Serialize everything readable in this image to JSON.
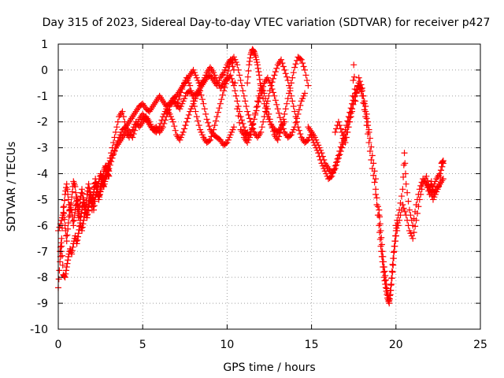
{
  "chart_data": {
    "type": "scatter",
    "title": "Day 315 of 2023, Sidereal Day-to-day VTEC variation (SDTVAR) for receiver p427",
    "xlabel": "GPS time / hours",
    "ylabel": "SDTVAR / TECUs",
    "xlim": [
      0,
      25
    ],
    "ylim": [
      -10,
      1
    ],
    "xticks": [
      "0",
      "5",
      "10",
      "15",
      "20",
      "25"
    ],
    "yticks": [
      "1",
      "0",
      "-1",
      "-2",
      "-3",
      "-4",
      "-5",
      "-6",
      "-7",
      "-8",
      "-9",
      "-10"
    ],
    "grid": true,
    "marker": "+",
    "series": [
      {
        "name": "SDTVAR p427",
        "color": "#ff0000",
        "segments": [
          {
            "name": "early-oscillating-band",
            "x": [
              0.0,
              0.2,
              0.3,
              0.4,
              0.5,
              0.6,
              0.7,
              0.8,
              0.9,
              1.0,
              1.1,
              1.2,
              1.3,
              1.4,
              1.5,
              1.6,
              1.7,
              1.8,
              1.9,
              2.0,
              2.1,
              2.2,
              2.3,
              2.4,
              2.5,
              2.6,
              2.7,
              2.8,
              2.9,
              3.0
            ],
            "y": [
              -6.2,
              -5.8,
              -5.5,
              -4.8,
              -4.4,
              -5.0,
              -5.6,
              -4.9,
              -4.3,
              -4.5,
              -5.2,
              -5.7,
              -5.0,
              -4.6,
              -5.1,
              -5.5,
              -4.8,
              -4.4,
              -4.9,
              -5.4,
              -4.7,
              -4.2,
              -4.6,
              -5.0,
              -4.5,
              -4.1,
              -4.3,
              -4.0,
              -3.8,
              -3.9
            ]
          },
          {
            "name": "early-low-band",
            "x": [
              0.0,
              0.1,
              0.2,
              0.3,
              0.4,
              0.5,
              0.6,
              0.7,
              0.8,
              0.9,
              1.0,
              1.1,
              1.2,
              1.3,
              1.4,
              1.5,
              1.6,
              1.7,
              1.8,
              1.9,
              2.0,
              2.1,
              2.2,
              2.3,
              2.4,
              2.5,
              2.6,
              2.7,
              2.8,
              2.9,
              3.0,
              3.2,
              3.4
            ],
            "y": [
              -8.4,
              -7.4,
              -6.8,
              -7.9,
              -8.0,
              -7.6,
              -7.2,
              -6.9,
              -7.1,
              -6.7,
              -6.4,
              -6.7,
              -6.3,
              -5.9,
              -6.2,
              -5.8,
              -5.4,
              -5.7,
              -5.3,
              -4.9,
              -5.1,
              -4.7,
              -4.4,
              -4.6,
              -4.3,
              -4.0,
              -4.2,
              -3.9,
              -3.7,
              -3.8,
              -3.6,
              -3.3,
              -3.0
            ]
          },
          {
            "name": "early-spike-band",
            "x": [
              0.1,
              0.2,
              0.3,
              0.4,
              0.5,
              0.6,
              0.7,
              0.8,
              0.9,
              1.0,
              1.1,
              1.2,
              1.3,
              1.4,
              1.5,
              1.6,
              1.7,
              1.8,
              1.9,
              2.0,
              2.1,
              2.2,
              2.3,
              2.4,
              2.5,
              2.6,
              2.7,
              2.8,
              2.9,
              3.0
            ],
            "y": [
              -7.0,
              -6.5,
              -5.3,
              -6.0,
              -6.6,
              -5.9,
              -5.2,
              -5.5,
              -6.0,
              -5.4,
              -4.9,
              -5.3,
              -5.8,
              -5.4,
              -5.0,
              -5.3,
              -5.6,
              -5.1,
              -4.7,
              -5.0,
              -5.4,
              -4.9,
              -4.6,
              -5.0,
              -4.7,
              -4.4,
              -4.5,
              -4.2,
              -4.0,
              -4.1
            ]
          },
          {
            "name": "rise-a",
            "x": [
              3.0,
              3.2,
              3.4,
              3.6,
              3.8,
              4.0,
              4.2,
              4.4,
              4.6,
              4.8,
              5.0,
              5.2,
              5.4,
              5.6,
              5.8,
              6.0,
              6.2,
              6.4,
              6.6,
              6.8,
              7.0,
              7.2,
              7.4,
              7.6,
              7.8,
              8.0,
              8.2,
              8.4,
              8.6,
              8.8,
              9.0,
              9.2,
              9.4,
              9.6,
              9.8,
              10.0
            ],
            "y": [
              -3.6,
              -3.0,
              -2.4,
              -1.8,
              -1.6,
              -2.2,
              -2.0,
              -1.8,
              -1.6,
              -1.4,
              -1.3,
              -1.5,
              -1.6,
              -1.4,
              -1.2,
              -1.0,
              -1.2,
              -1.4,
              -1.3,
              -1.1,
              -1.0,
              -0.8,
              -0.6,
              -0.4,
              -0.2,
              0.0,
              -0.3,
              -0.6,
              -0.4,
              -0.1,
              0.1,
              -0.1,
              -0.4,
              -0.7,
              -0.5,
              -0.3
            ]
          },
          {
            "name": "rise-b",
            "x": [
              3.0,
              3.2,
              3.4,
              3.6,
              3.8,
              4.0,
              4.2,
              4.4,
              4.6,
              4.8,
              5.0,
              5.2,
              5.4,
              5.6,
              5.8,
              6.0,
              6.2,
              6.4,
              6.6,
              6.8,
              7.0,
              7.2,
              7.4,
              7.6,
              7.8,
              8.0,
              8.2,
              8.4,
              8.6,
              8.8,
              9.0,
              9.2,
              9.4,
              9.6,
              9.8,
              10.0,
              10.2,
              10.4,
              10.6,
              10.8,
              11.0,
              11.2
            ],
            "y": [
              -3.8,
              -3.4,
              -3.0,
              -2.8,
              -2.6,
              -2.4,
              -2.6,
              -2.3,
              -2.0,
              -2.2,
              -2.0,
              -1.8,
              -2.0,
              -2.3,
              -2.2,
              -2.4,
              -2.2,
              -1.8,
              -1.4,
              -1.2,
              -1.3,
              -1.5,
              -1.2,
              -0.9,
              -0.8,
              -1.0,
              -0.9,
              -0.7,
              -0.5,
              -0.3,
              -0.2,
              -0.4,
              -0.6,
              -0.3,
              -0.1,
              0.2,
              0.4,
              0.0,
              -1.5,
              -2.3,
              -2.5,
              -2.4
            ]
          },
          {
            "name": "rise-c",
            "x": [
              3.4,
              3.6,
              3.8,
              4.0,
              4.2,
              4.4,
              4.6,
              4.8,
              5.0,
              5.2,
              5.4,
              5.6,
              5.8,
              6.0,
              6.2,
              6.4,
              6.6,
              6.8,
              7.0,
              7.2,
              7.4,
              7.6,
              7.8,
              8.0,
              8.2,
              8.4,
              8.6,
              8.8,
              9.0,
              9.2,
              9.4,
              9.6,
              9.8,
              10.0,
              10.2,
              10.4
            ],
            "y": [
              -3.0,
              -2.6,
              -2.3,
              -2.2,
              -2.4,
              -2.6,
              -2.2,
              -1.9,
              -1.7,
              -1.9,
              -2.1,
              -2.3,
              -2.4,
              -2.2,
              -1.8,
              -1.5,
              -1.7,
              -2.0,
              -2.5,
              -2.7,
              -2.4,
              -2.0,
              -1.6,
              -1.3,
              -1.0,
              -0.8,
              -1.3,
              -1.9,
              -2.3,
              -2.5,
              -2.6,
              -2.7,
              -2.9,
              -2.8,
              -2.5,
              -2.2
            ]
          },
          {
            "name": "mid-loop-a",
            "x": [
              7.0,
              7.2,
              7.4,
              7.6,
              7.8,
              8.0,
              8.2,
              8.4,
              8.6,
              8.8,
              9.0,
              9.2,
              9.4,
              9.6,
              9.8,
              10.0,
              10.2,
              10.4,
              10.6,
              10.8,
              11.0,
              11.2,
              11.4,
              11.6,
              11.8,
              12.0,
              12.2,
              12.4,
              12.6,
              12.8,
              13.0,
              13.2,
              13.4,
              13.6,
              13.8,
              14.0,
              14.2,
              14.4,
              14.6
            ],
            "y": [
              -1.4,
              -1.0,
              -0.6,
              -0.3,
              -0.6,
              -1.2,
              -1.8,
              -2.3,
              -2.6,
              -2.8,
              -2.7,
              -2.3,
              -1.8,
              -1.3,
              -0.8,
              -0.4,
              -0.2,
              -0.6,
              -1.2,
              -1.8,
              -2.2,
              -2.6,
              -2.4,
              -1.9,
              -1.4,
              -0.9,
              -0.5,
              -0.3,
              -0.6,
              -1.0,
              -1.5,
              -2.0,
              -2.4,
              -2.6,
              -2.5,
              -2.2,
              -1.7,
              -1.2,
              -0.9
            ]
          },
          {
            "name": "mid-loop-b",
            "x": [
              10.0,
              10.2,
              10.4,
              10.6,
              10.8,
              11.0,
              11.2,
              11.4,
              11.6,
              11.8,
              12.0,
              12.2,
              12.4,
              12.6,
              12.8,
              13.0,
              13.2,
              13.4,
              13.6,
              13.8,
              14.0,
              14.2,
              14.4,
              14.6,
              14.8,
              15.0
            ],
            "y": [
              -0.2,
              0.3,
              0.5,
              0.2,
              -0.4,
              -1.0,
              -1.6,
              -2.0,
              -2.4,
              -2.6,
              -2.4,
              -1.8,
              -1.2,
              -0.6,
              -0.2,
              0.2,
              0.4,
              0.0,
              -0.4,
              -1.0,
              -1.6,
              -2.2,
              -2.6,
              -2.8,
              -2.7,
              -2.4
            ]
          },
          {
            "name": "mid-loop-c",
            "x": [
              11.0,
              11.2,
              11.4,
              11.6,
              11.8,
              12.0,
              12.2,
              12.4,
              12.6,
              12.8,
              13.0,
              13.2,
              13.4,
              13.6,
              13.8,
              14.0,
              14.2,
              14.4,
              14.6,
              14.8
            ],
            "y": [
              -2.6,
              -2.8,
              -2.5,
              -1.9,
              -1.2,
              -0.6,
              -0.9,
              -1.5,
              -2.1,
              -2.5,
              -2.7,
              -2.3,
              -1.7,
              -1.1,
              -0.5,
              0.1,
              0.5,
              0.4,
              0.0,
              -0.6
            ]
          },
          {
            "name": "mid-peak",
            "x": [
              11.2,
              11.3,
              11.4,
              11.5,
              11.6,
              11.7,
              11.8,
              11.9,
              12.0,
              12.2,
              12.4,
              12.6,
              12.8,
              13.0,
              13.2,
              13.4
            ],
            "y": [
              -0.5,
              0.2,
              0.6,
              0.8,
              0.7,
              0.5,
              0.2,
              -0.2,
              -0.7,
              -1.3,
              -1.8,
              -2.1,
              -2.3,
              -2.4,
              -2.2,
              -2.0
            ]
          },
          {
            "name": "afternoon-band",
            "x": [
              14.8,
              15.0,
              15.2,
              15.4,
              15.6,
              15.8,
              16.0,
              16.2,
              16.4,
              16.6,
              16.8,
              17.0,
              17.2,
              17.4,
              17.6,
              17.8,
              18.0,
              18.2,
              18.4,
              18.6,
              18.8
            ],
            "y": [
              -2.2,
              -2.4,
              -2.6,
              -2.9,
              -3.2,
              -3.6,
              -3.8,
              -4.0,
              -3.8,
              -3.4,
              -3.0,
              -2.6,
              -2.0,
              -1.5,
              -1.0,
              -0.6,
              -0.8,
              -1.4,
              -2.3,
              -3.3,
              -4.2
            ]
          },
          {
            "name": "afternoon-band-2",
            "x": [
              15.0,
              15.2,
              15.4,
              15.6,
              15.8,
              16.0,
              16.2,
              16.4,
              16.6,
              16.8,
              17.0,
              17.2,
              17.4,
              17.6,
              17.8,
              18.0,
              18.2,
              18.4,
              18.6,
              18.8,
              19.0
            ],
            "y": [
              -2.6,
              -2.9,
              -3.2,
              -3.6,
              -3.9,
              -4.2,
              -4.1,
              -3.7,
              -3.3,
              -2.8,
              -2.3,
              -1.8,
              -1.3,
              -0.9,
              -0.5,
              -1.0,
              -1.8,
              -2.8,
              -3.8,
              -4.6,
              -5.6
            ]
          },
          {
            "name": "afternoon-spikes",
            "x": [
              16.4,
              16.6,
              16.8,
              17.0,
              17.2,
              17.4,
              17.5,
              17.6,
              17.8,
              18.0,
              18.2,
              18.4
            ],
            "y": [
              -2.4,
              -2.0,
              -2.4,
              -2.8,
              -2.2,
              -1.6,
              0.2,
              -1.2,
              -0.3,
              -0.7,
              -1.6,
              -2.4
            ]
          },
          {
            "name": "descent-to-minimum",
            "x": [
              18.8,
              19.0,
              19.1,
              19.2,
              19.3,
              19.4,
              19.5,
              19.6,
              19.7,
              19.8,
              19.9,
              20.0
            ],
            "y": [
              -4.8,
              -6.0,
              -6.8,
              -7.4,
              -8.0,
              -8.4,
              -8.8,
              -9.0,
              -8.5,
              -7.8,
              -7.0,
              -6.4
            ]
          },
          {
            "name": "descent-to-minimum-2",
            "x": [
              19.0,
              19.1,
              19.2,
              19.3,
              19.4,
              19.5,
              19.6,
              19.7,
              19.8,
              19.9,
              20.0,
              20.1
            ],
            "y": [
              -5.4,
              -6.2,
              -7.0,
              -7.6,
              -8.1,
              -8.6,
              -8.9,
              -8.3,
              -7.5,
              -6.8,
              -6.2,
              -5.9
            ]
          },
          {
            "name": "late-recovery",
            "x": [
              20.0,
              20.2,
              20.4,
              20.5,
              20.6,
              20.8,
              21.0,
              21.2,
              21.4,
              21.6,
              21.8,
              22.0,
              22.2,
              22.4,
              22.6,
              22.8
            ],
            "y": [
              -6.0,
              -5.4,
              -4.6,
              -3.2,
              -4.4,
              -5.4,
              -6.0,
              -5.2,
              -4.6,
              -4.2,
              -4.4,
              -4.8,
              -4.5,
              -4.2,
              -4.0,
              -3.6
            ]
          },
          {
            "name": "late-recovery-2",
            "x": [
              20.0,
              20.2,
              20.4,
              20.6,
              20.8,
              21.0,
              21.2,
              21.4,
              21.6,
              21.8,
              22.0,
              22.2,
              22.4,
              22.6,
              22.8
            ],
            "y": [
              -6.4,
              -5.8,
              -5.2,
              -5.6,
              -6.2,
              -6.5,
              -5.8,
              -5.0,
              -4.4,
              -4.1,
              -4.6,
              -5.0,
              -4.7,
              -4.4,
              -4.2
            ]
          },
          {
            "name": "late-tail",
            "x": [
              21.8,
              22.0,
              22.1,
              22.2,
              22.4,
              22.6,
              22.7,
              22.8
            ],
            "y": [
              -4.4,
              -4.6,
              -4.3,
              -4.8,
              -4.6,
              -4.4,
              -3.6,
              -3.5
            ]
          }
        ]
      }
    ]
  }
}
